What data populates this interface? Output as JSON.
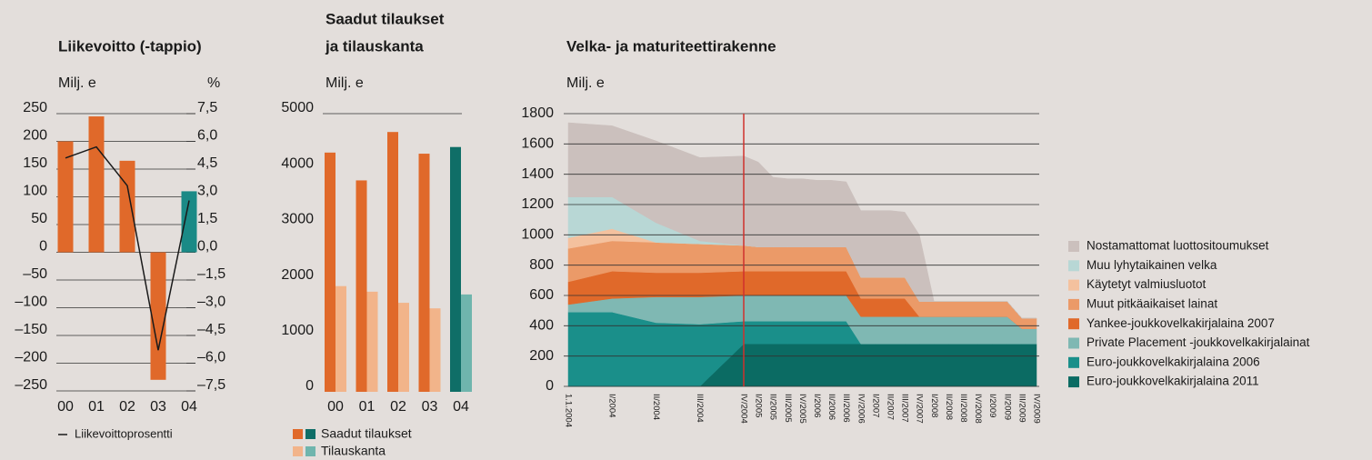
{
  "chart_data": [
    {
      "type": "bar",
      "title": "Liikevoitto (-tappio)",
      "ylabel": "Milj. e",
      "y2label": "%",
      "categories": [
        "00",
        "01",
        "02",
        "03",
        "04"
      ],
      "series": [
        {
          "values": [
            200,
            245,
            165,
            -230,
            110
          ],
          "colors": [
            "#e0692a",
            "#e0692a",
            "#e0692a",
            "#e0692a",
            "#1a8a86"
          ]
        },
        {
          "name": "Liikevoittoprosentti",
          "type": "line",
          "axis": "y2",
          "color": "#1a1a1a",
          "values": [
            5.1,
            5.7,
            3.6,
            -5.3,
            2.8
          ]
        }
      ],
      "ylim": [
        -250,
        250
      ],
      "yticks": [
        250,
        200,
        150,
        100,
        50,
        0,
        {
          "value": -50,
          "label": "–50"
        },
        {
          "value": -100,
          "label": "–100"
        },
        {
          "value": -150,
          "label": "–150"
        },
        {
          "value": -200,
          "label": "–200"
        },
        {
          "value": -250,
          "label": "–250"
        }
      ],
      "y2lim": [
        -7.5,
        7.5
      ],
      "y2ticks": [
        {
          "value": 7.5,
          "label": "7,5"
        },
        {
          "value": 6,
          "label": "6,0"
        },
        {
          "value": 4.5,
          "label": "4,5"
        },
        {
          "value": 3,
          "label": "3,0"
        },
        {
          "value": 1.5,
          "label": "1,5"
        },
        {
          "value": 0,
          "label": "0,0"
        },
        {
          "value": -1.5,
          "label": "–1,5"
        },
        {
          "value": -3,
          "label": "–3,0"
        },
        {
          "value": -4.5,
          "label": "–4,5"
        },
        {
          "value": -6,
          "label": "–6,0"
        },
        {
          "value": -7.5,
          "label": "–7,5"
        }
      ],
      "grid": true
    },
    {
      "type": "grouped_bar",
      "title": [
        "Saadut tilaukset",
        "ja tilauskanta"
      ],
      "ylabel": "Milj. e",
      "categories": [
        "00",
        "01",
        "02",
        "03",
        "04"
      ],
      "series": [
        {
          "name": "Saadut tilaukset",
          "values": [
            4300,
            3800,
            4670,
            4280,
            4400
          ],
          "colors": [
            "#e0692a",
            "#e0692a",
            "#e0692a",
            "#e0692a",
            "#0f6e67"
          ]
        },
        {
          "name": "Tilauskanta",
          "values": [
            1900,
            1800,
            1600,
            1500,
            1750
          ],
          "colors": [
            "#f2b48a",
            "#f2b48a",
            "#f2b48a",
            "#f2b48a",
            "#6fb5ad"
          ]
        }
      ],
      "ylim": [
        0,
        5000
      ],
      "yticks": [
        0,
        1000,
        2000,
        3000,
        4000,
        5000
      ],
      "grid": false
    },
    {
      "type": "area",
      "stacked": true,
      "title": "Velka- ja maturiteettirakenne",
      "ylabel": "Milj. e",
      "categories": [
        "1.1.2004",
        "I/2004",
        "II/2004",
        "III/2004",
        "IV/2004",
        "I/2005",
        "II/2005",
        "III/2005",
        "IV/2005",
        "I/2006",
        "II/2006",
        "III/2006",
        "IV/2006",
        "I/2007",
        "II/2007",
        "III/2007",
        "IV/2007",
        "I/2008",
        "II/2008",
        "III/2008",
        "IV/2008",
        "I/2009",
        "II/2009",
        "III/2009",
        "IV/2009"
      ],
      "series": [
        {
          "name": "Nostamattomat luottositoumukset",
          "color": "#cbc0bd",
          "values": [
            490,
            470,
            540,
            550,
            590,
            560,
            460,
            450,
            450,
            440,
            440,
            430,
            440,
            440,
            440,
            430,
            440,
            0,
            0,
            0,
            0,
            0,
            0,
            0,
            0
          ]
        },
        {
          "name": "Muu lyhytaikainen velka",
          "color": "#b8d7d5",
          "values": [
            270,
            210,
            130,
            20,
            0,
            0,
            0,
            0,
            0,
            0,
            0,
            0,
            0,
            0,
            0,
            0,
            0,
            0,
            0,
            0,
            0,
            0,
            0,
            0,
            0
          ]
        },
        {
          "name": "Käytetyt valmiusluotot",
          "color": "#f4c19e",
          "values": [
            70,
            80,
            0,
            0,
            0,
            0,
            0,
            0,
            0,
            0,
            0,
            0,
            0,
            0,
            0,
            0,
            0,
            0,
            0,
            0,
            0,
            0,
            0,
            0,
            0
          ]
        },
        {
          "name": "Muut pitkäaikaiset lainat",
          "color": "#eb9a68",
          "values": [
            220,
            200,
            200,
            190,
            170,
            160,
            160,
            160,
            160,
            160,
            160,
            160,
            140,
            140,
            140,
            140,
            100,
            100,
            100,
            100,
            100,
            100,
            100,
            70,
            70
          ]
        },
        {
          "name": "Yankee-joukkovelkakirjalaina 2007",
          "color": "#e0692a",
          "values": [
            150,
            180,
            160,
            160,
            160,
            160,
            160,
            160,
            160,
            160,
            160,
            160,
            120,
            120,
            120,
            120,
            0,
            0,
            0,
            0,
            0,
            0,
            0,
            0,
            0
          ]
        },
        {
          "name": "Private Placement -joukkovelkakirjalainat",
          "color": "#7fb8b3",
          "values": [
            50,
            90,
            170,
            180,
            170,
            170,
            170,
            170,
            170,
            170,
            170,
            170,
            180,
            180,
            180,
            180,
            180,
            180,
            180,
            180,
            180,
            180,
            180,
            100,
            100
          ]
        },
        {
          "name": "Euro-joukkovelkakirjalaina 2006",
          "color": "#1a8f8a",
          "values": [
            490,
            490,
            420,
            410,
            150,
            150,
            150,
            150,
            150,
            150,
            150,
            150,
            0,
            0,
            0,
            0,
            0,
            0,
            0,
            0,
            0,
            0,
            0,
            0,
            0
          ]
        },
        {
          "name": "Euro-joukkovelkakirjalaina 2011",
          "color": "#0b6b63",
          "values": [
            0,
            0,
            0,
            0,
            280,
            280,
            280,
            280,
            280,
            280,
            280,
            280,
            280,
            280,
            280,
            280,
            280,
            280,
            280,
            280,
            280,
            280,
            280,
            280,
            280
          ]
        }
      ],
      "ylim": [
        0,
        1800
      ],
      "yticks": [
        0,
        200,
        400,
        600,
        800,
        1000,
        1200,
        1400,
        1600,
        1800
      ],
      "grid": true
    }
  ]
}
